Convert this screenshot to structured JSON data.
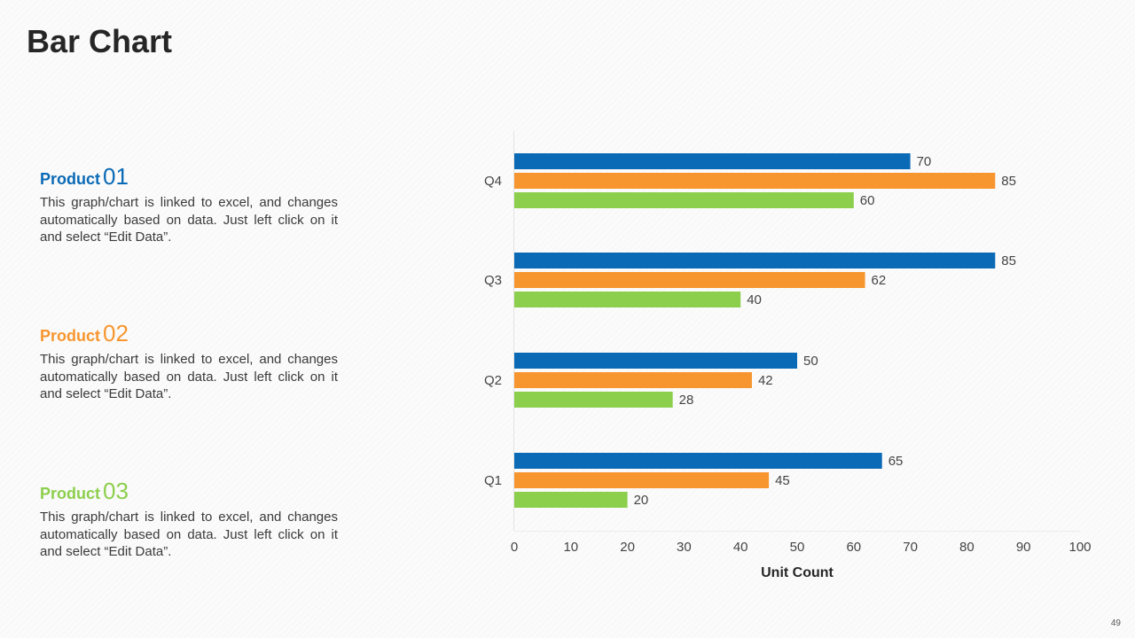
{
  "title": "Bar Chart",
  "page_number": "49",
  "colors": {
    "product_01": "#0a6ab6",
    "product_02": "#f7962f",
    "product_03": "#8ccf4d"
  },
  "products": [
    {
      "label": "Product",
      "number": "01",
      "description": "This graph/chart is linked to excel, and changes automatically based on data. Just left click on it and select “Edit Data”."
    },
    {
      "label": "Product",
      "number": "02",
      "description": "This graph/chart is linked to excel, and changes automatically based on data. Just left click on it and select “Edit Data”."
    },
    {
      "label": "Product",
      "number": "03",
      "description": "This graph/chart is linked to excel, and changes automatically based on data. Just left click on it and select “Edit Data”."
    }
  ],
  "chart_data": {
    "type": "bar",
    "orientation": "horizontal",
    "title": "",
    "xlabel": "Unit Count",
    "ylabel": "",
    "xlim": [
      0,
      100
    ],
    "x_ticks": [
      "0",
      "10",
      "20",
      "30",
      "40",
      "50",
      "60",
      "70",
      "80",
      "90",
      "100"
    ],
    "grid": false,
    "categories": [
      "Q1",
      "Q2",
      "Q3",
      "Q4"
    ],
    "series": [
      {
        "name": "Product 01",
        "color": "#0a6ab6",
        "values": [
          65,
          50,
          85,
          70
        ]
      },
      {
        "name": "Product 02",
        "color": "#f7962f",
        "values": [
          45,
          42,
          62,
          85
        ]
      },
      {
        "name": "Product 03",
        "color": "#8ccf4d",
        "values": [
          20,
          28,
          40,
          60
        ]
      }
    ]
  }
}
